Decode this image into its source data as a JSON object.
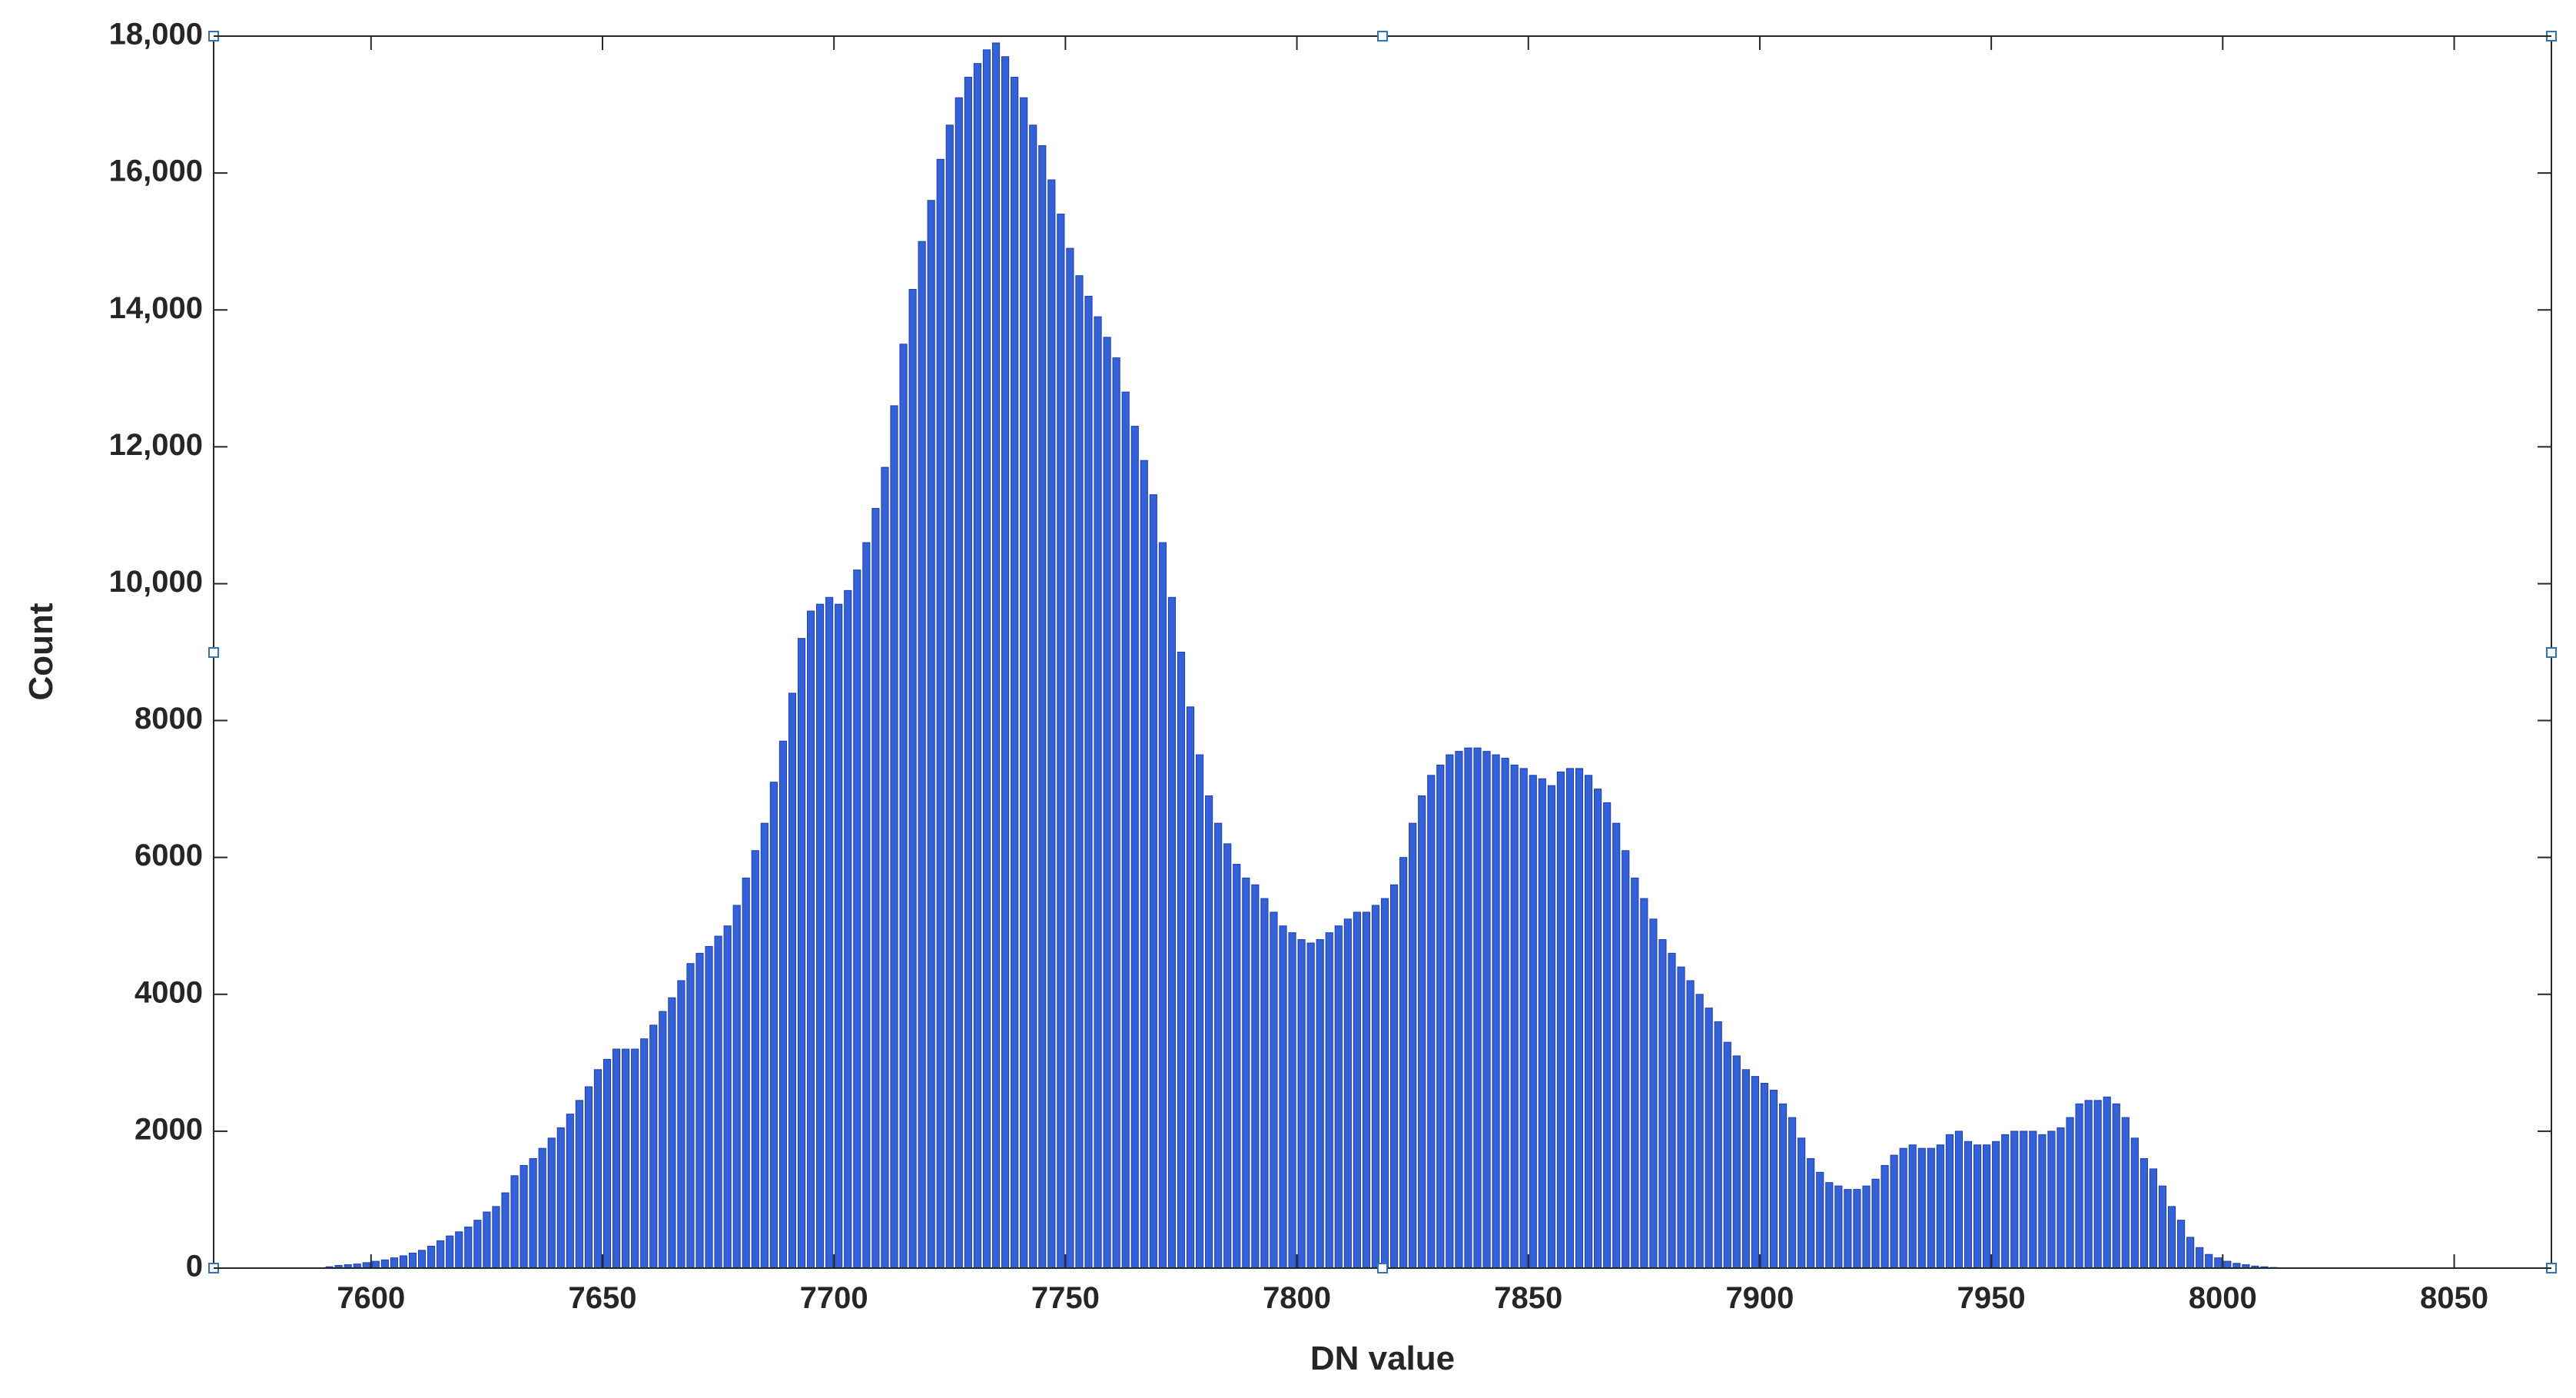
{
  "chart_data": {
    "type": "histogram",
    "xlabel": "DN value",
    "ylabel": "Count",
    "color": "#3461d6",
    "edgecolor": "#1d3fb3",
    "xlim": [
      7566,
      8071
    ],
    "ylim": [
      0,
      18000
    ],
    "xticks": [
      7600,
      7650,
      7700,
      7750,
      7800,
      7850,
      7900,
      7950,
      8000,
      8050
    ],
    "yticks": [
      0,
      2000,
      4000,
      6000,
      8000,
      {
        "value": 10000,
        "label": "10,000"
      },
      {
        "value": 12000,
        "label": "12,000"
      },
      {
        "value": 14000,
        "label": "14,000"
      },
      {
        "value": 16000,
        "label": "16,000"
      },
      {
        "value": 18000,
        "label": "18,000"
      }
    ],
    "bins": [
      7590,
      7592,
      7594,
      7596,
      7598,
      7600,
      7602,
      7604,
      7606,
      7608,
      7610,
      7612,
      7614,
      7616,
      7618,
      7620,
      7622,
      7624,
      7626,
      7628,
      7630,
      7632,
      7634,
      7636,
      7638,
      7640,
      7642,
      7644,
      7646,
      7648,
      7650,
      7652,
      7654,
      7656,
      7658,
      7660,
      7662,
      7664,
      7666,
      7668,
      7670,
      7672,
      7674,
      7676,
      7678,
      7680,
      7682,
      7684,
      7686,
      7688,
      7690,
      7692,
      7694,
      7696,
      7698,
      7700,
      7702,
      7704,
      7706,
      7708,
      7710,
      7712,
      7714,
      7716,
      7718,
      7720,
      7722,
      7724,
      7726,
      7728,
      7730,
      7732,
      7734,
      7736,
      7738,
      7740,
      7742,
      7744,
      7746,
      7748,
      7750,
      7752,
      7754,
      7756,
      7758,
      7760,
      7762,
      7764,
      7766,
      7768,
      7770,
      7772,
      7774,
      7776,
      7778,
      7780,
      7782,
      7784,
      7786,
      7788,
      7790,
      7792,
      7794,
      7796,
      7798,
      7800,
      7802,
      7804,
      7806,
      7808,
      7810,
      7812,
      7814,
      7816,
      7818,
      7820,
      7822,
      7824,
      7826,
      7828,
      7830,
      7832,
      7834,
      7836,
      7838,
      7840,
      7842,
      7844,
      7846,
      7848,
      7850,
      7852,
      7854,
      7856,
      7858,
      7860,
      7862,
      7864,
      7866,
      7868,
      7870,
      7872,
      7874,
      7876,
      7878,
      7880,
      7882,
      7884,
      7886,
      7888,
      7890,
      7892,
      7894,
      7896,
      7898,
      7900,
      7902,
      7904,
      7906,
      7908,
      7910,
      7912,
      7914,
      7916,
      7918,
      7920,
      7922,
      7924,
      7926,
      7928,
      7930,
      7932,
      7934,
      7936,
      7938,
      7940,
      7942,
      7944,
      7946,
      7948,
      7950,
      7952,
      7954,
      7956,
      7958,
      7960,
      7962,
      7964,
      7966,
      7968,
      7970,
      7972,
      7974,
      7976,
      7978,
      7980,
      7982,
      7984,
      7986,
      7988,
      7990,
      7992,
      7994,
      7996,
      7998,
      8000,
      8002,
      8004,
      8006,
      8008,
      8010,
      8012,
      8014,
      8016
    ],
    "values": [
      20,
      40,
      50,
      60,
      80,
      100,
      120,
      150,
      180,
      220,
      260,
      320,
      400,
      470,
      530,
      600,
      700,
      820,
      900,
      1100,
      1350,
      1500,
      1600,
      1750,
      1900,
      2050,
      2250,
      2450,
      2650,
      2900,
      3050,
      3200,
      3200,
      3200,
      3350,
      3550,
      3750,
      3950,
      4200,
      4450,
      4600,
      4700,
      4850,
      5000,
      5300,
      5700,
      6100,
      6500,
      7100,
      7700,
      8400,
      9200,
      9600,
      9700,
      9800,
      9700,
      9900,
      10200,
      10600,
      11100,
      11700,
      12600,
      13500,
      14300,
      15000,
      15600,
      16200,
      16700,
      17100,
      17400,
      17600,
      17800,
      17900,
      17700,
      17400,
      17100,
      16700,
      16400,
      15900,
      15400,
      14900,
      14500,
      14200,
      13900,
      13600,
      13300,
      12800,
      12300,
      11800,
      11300,
      10600,
      9800,
      9000,
      8200,
      7500,
      6900,
      6500,
      6200,
      5900,
      5700,
      5600,
      5400,
      5200,
      5000,
      4900,
      4800,
      4750,
      4800,
      4900,
      5000,
      5100,
      5200,
      5200,
      5300,
      5400,
      5600,
      6000,
      6500,
      6900,
      7200,
      7350,
      7500,
      7550,
      7600,
      7600,
      7550,
      7500,
      7450,
      7350,
      7300,
      7200,
      7150,
      7050,
      7250,
      7300,
      7300,
      7200,
      7000,
      6800,
      6500,
      6100,
      5700,
      5400,
      5100,
      4800,
      4600,
      4400,
      4200,
      4000,
      3800,
      3600,
      3300,
      3100,
      2900,
      2800,
      2700,
      2600,
      2400,
      2200,
      1900,
      1600,
      1400,
      1250,
      1200,
      1150,
      1150,
      1200,
      1300,
      1500,
      1650,
      1750,
      1800,
      1750,
      1750,
      1800,
      1950,
      2000,
      1850,
      1800,
      1800,
      1850,
      1950,
      2000,
      2000,
      2000,
      1950,
      2000,
      2050,
      2200,
      2400,
      2450,
      2450,
      2500,
      2400,
      2200,
      1900,
      1600,
      1450,
      1200,
      900,
      700,
      450,
      300,
      200,
      150,
      100,
      70,
      50,
      30,
      20,
      10,
      5,
      5
    ]
  }
}
